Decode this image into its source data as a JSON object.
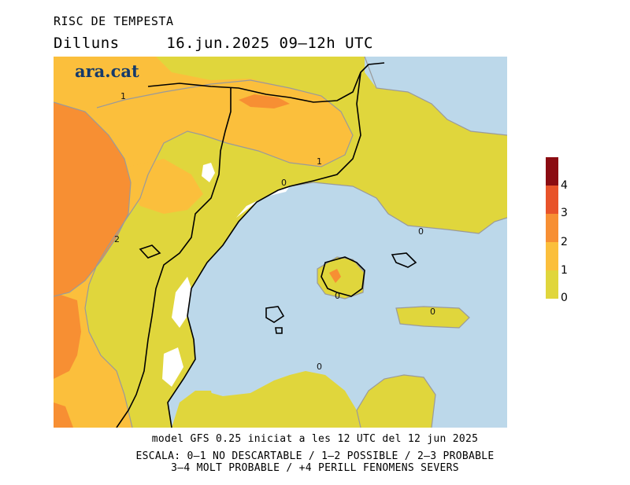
{
  "title": "RISC DE TEMPESTA",
  "subtitle": {
    "day": "Dilluns",
    "datetime": "16.jun.2025 09–12h UTC"
  },
  "logo": "ara.cat",
  "legend": {
    "labels": [
      "4",
      "3",
      "2",
      "1",
      "0"
    ],
    "colors": [
      "#8b0c12",
      "#e8532a",
      "#f78f33",
      "#fbbf3c",
      "#e0d63c"
    ]
  },
  "contour_labels": {
    "a": "1",
    "b": "1",
    "c": "0",
    "d": "2",
    "e": "0",
    "f": "0",
    "g": "0",
    "h": "0"
  },
  "colors": {
    "sea": "#bcd8ea",
    "level0": "#e0d63c",
    "level1": "#fbbf3c",
    "level2": "#f78f33",
    "land_white": "#ffffff",
    "border": "#000000"
  },
  "footer": {
    "line1": "model GFS 0.25 iniciat a les 12 UTC del 12 jun 2025",
    "line2": "ESCALA: 0–1 NO DESCARTABLE / 1–2 POSSIBLE / 2–3 PROBABLE",
    "line3": "3–4 MOLT PROBABLE / +4 PERILL FENOMENS SEVERS"
  }
}
